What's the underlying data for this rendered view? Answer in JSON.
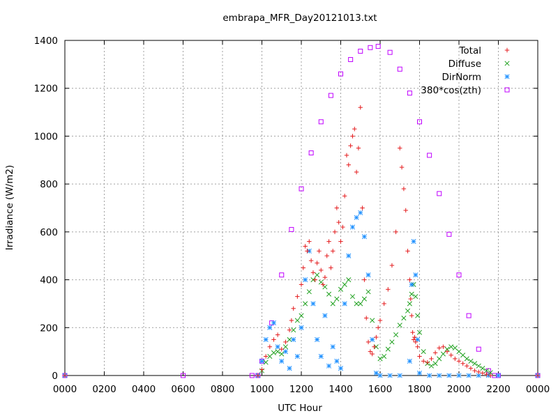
{
  "chart_data": {
    "type": "scatter",
    "title": "embrapa_MFR_Day20121013.txt",
    "xlabel": "UTC Hour",
    "ylabel": "Irradiance (W/m2)",
    "xlim": [
      0,
      24
    ],
    "ylim": [
      0,
      1400
    ],
    "x_ticks": [
      0,
      2,
      4,
      6,
      8,
      10,
      12,
      14,
      16,
      18,
      20,
      22,
      24
    ],
    "x_tick_labels": [
      "0000",
      "0200",
      "0400",
      "0600",
      "0800",
      "1000",
      "1200",
      "1400",
      "1600",
      "1800",
      "2000",
      "2200",
      "0000"
    ],
    "y_ticks": [
      0,
      200,
      400,
      600,
      800,
      1000,
      1200,
      1400
    ],
    "grid": true,
    "legend_position": "top-right",
    "series": [
      {
        "name": "Total",
        "marker": "plus",
        "color": "#e41a1c",
        "x": [
          0,
          9.8,
          10.0,
          10.2,
          10.4,
          10.6,
          10.8,
          11.0,
          11.2,
          11.4,
          11.5,
          11.6,
          11.8,
          12.0,
          12.1,
          12.2,
          12.3,
          12.4,
          12.5,
          12.6,
          12.7,
          12.8,
          12.9,
          13.0,
          13.1,
          13.2,
          13.3,
          13.4,
          13.5,
          13.6,
          13.7,
          13.8,
          13.9,
          14.0,
          14.1,
          14.2,
          14.3,
          14.4,
          14.5,
          14.6,
          14.7,
          14.8,
          14.9,
          15.0,
          15.1,
          15.2,
          15.3,
          15.4,
          15.5,
          15.6,
          15.7,
          15.8,
          15.9,
          16.0,
          16.2,
          16.4,
          16.6,
          16.8,
          17.0,
          17.1,
          17.2,
          17.3,
          17.4,
          17.5,
          17.55,
          17.6,
          17.65,
          17.7,
          17.75,
          17.8,
          17.9,
          18.0,
          18.2,
          18.4,
          18.6,
          18.8,
          19.0,
          19.2,
          19.4,
          19.6,
          19.8,
          20.0,
          20.2,
          20.4,
          20.6,
          20.8,
          21.0,
          21.2,
          21.4,
          21.6,
          24
        ],
        "y": [
          0,
          0,
          25,
          80,
          120,
          150,
          170,
          110,
          140,
          190,
          230,
          280,
          330,
          380,
          450,
          540,
          520,
          560,
          480,
          430,
          400,
          470,
          520,
          440,
          380,
          410,
          500,
          560,
          450,
          520,
          600,
          700,
          640,
          560,
          620,
          750,
          920,
          880,
          960,
          1000,
          1030,
          850,
          950,
          1120,
          700,
          400,
          240,
          140,
          100,
          90,
          120,
          160,
          200,
          230,
          300,
          360,
          460,
          600,
          950,
          870,
          780,
          690,
          520,
          400,
          320,
          250,
          180,
          150,
          160,
          140,
          120,
          80,
          60,
          55,
          70,
          95,
          115,
          120,
          100,
          85,
          70,
          60,
          50,
          40,
          30,
          20,
          15,
          10,
          5,
          0,
          0
        ]
      },
      {
        "name": "Diffuse",
        "marker": "cross",
        "color": "#1ea01e",
        "x": [
          0,
          9.8,
          10.0,
          10.2,
          10.4,
          10.6,
          10.8,
          11.0,
          11.2,
          11.4,
          11.6,
          11.8,
          12.0,
          12.2,
          12.4,
          12.6,
          12.8,
          13.0,
          13.2,
          13.4,
          13.6,
          13.8,
          14.0,
          14.2,
          14.4,
          14.6,
          14.8,
          15.0,
          15.2,
          15.4,
          15.6,
          15.8,
          16.0,
          16.2,
          16.4,
          16.6,
          16.8,
          17.0,
          17.2,
          17.4,
          17.5,
          17.6,
          17.7,
          17.8,
          17.9,
          18.0,
          18.2,
          18.4,
          18.6,
          18.8,
          19.0,
          19.2,
          19.4,
          19.6,
          19.8,
          20.0,
          20.2,
          20.4,
          20.6,
          20.8,
          21.0,
          21.2,
          21.4,
          21.6,
          24
        ],
        "y": [
          0,
          0,
          20,
          55,
          80,
          95,
          100,
          90,
          120,
          150,
          190,
          230,
          250,
          300,
          350,
          400,
          420,
          390,
          370,
          340,
          300,
          320,
          360,
          380,
          400,
          330,
          300,
          300,
          320,
          350,
          230,
          120,
          70,
          80,
          110,
          140,
          170,
          210,
          240,
          270,
          300,
          340,
          380,
          330,
          250,
          180,
          100,
          50,
          40,
          50,
          70,
          90,
          110,
          120,
          115,
          100,
          85,
          70,
          60,
          50,
          40,
          30,
          20,
          12,
          0
        ]
      },
      {
        "name": "DirNorm",
        "marker": "star",
        "color": "#1e90ff",
        "x": [
          0,
          9.8,
          10.0,
          10.2,
          10.4,
          10.6,
          10.8,
          11.0,
          11.2,
          11.4,
          11.6,
          11.8,
          12.0,
          12.2,
          12.4,
          12.6,
          12.8,
          13.0,
          13.2,
          13.4,
          13.6,
          13.8,
          14.0,
          14.2,
          14.4,
          14.6,
          14.8,
          15.0,
          15.2,
          15.4,
          15.6,
          15.8,
          16.0,
          16.5,
          17.0,
          17.5,
          17.6,
          17.7,
          17.8,
          17.9,
          18.0,
          18.5,
          19.0,
          19.5,
          20.0,
          20.5,
          21.0,
          21.5,
          22.0,
          24
        ],
        "y": [
          0,
          0,
          60,
          150,
          200,
          220,
          120,
          60,
          100,
          30,
          150,
          80,
          200,
          400,
          520,
          300,
          150,
          80,
          250,
          40,
          120,
          60,
          30,
          300,
          500,
          620,
          660,
          680,
          580,
          420,
          150,
          10,
          0,
          0,
          0,
          60,
          380,
          560,
          420,
          150,
          10,
          0,
          0,
          0,
          0,
          0,
          0,
          0,
          0,
          0
        ]
      },
      {
        "name": "380*cos(zth)",
        "marker": "square",
        "color": "#c000ff",
        "x": [
          0,
          6,
          9.5,
          9.8,
          10.0,
          10.5,
          11.0,
          11.5,
          12.0,
          12.5,
          13.0,
          13.5,
          14.0,
          14.5,
          15.0,
          15.5,
          15.9,
          16.5,
          17.0,
          17.5,
          18.0,
          18.5,
          19.0,
          19.5,
          20.0,
          20.5,
          21.0,
          21.5,
          21.8,
          22.0,
          24
        ],
        "y": [
          0,
          0,
          0,
          0,
          60,
          220,
          420,
          610,
          780,
          930,
          1060,
          1170,
          1260,
          1320,
          1355,
          1370,
          1375,
          1350,
          1280,
          1180,
          1060,
          920,
          760,
          590,
          420,
          250,
          110,
          20,
          0,
          0,
          0
        ]
      }
    ]
  }
}
